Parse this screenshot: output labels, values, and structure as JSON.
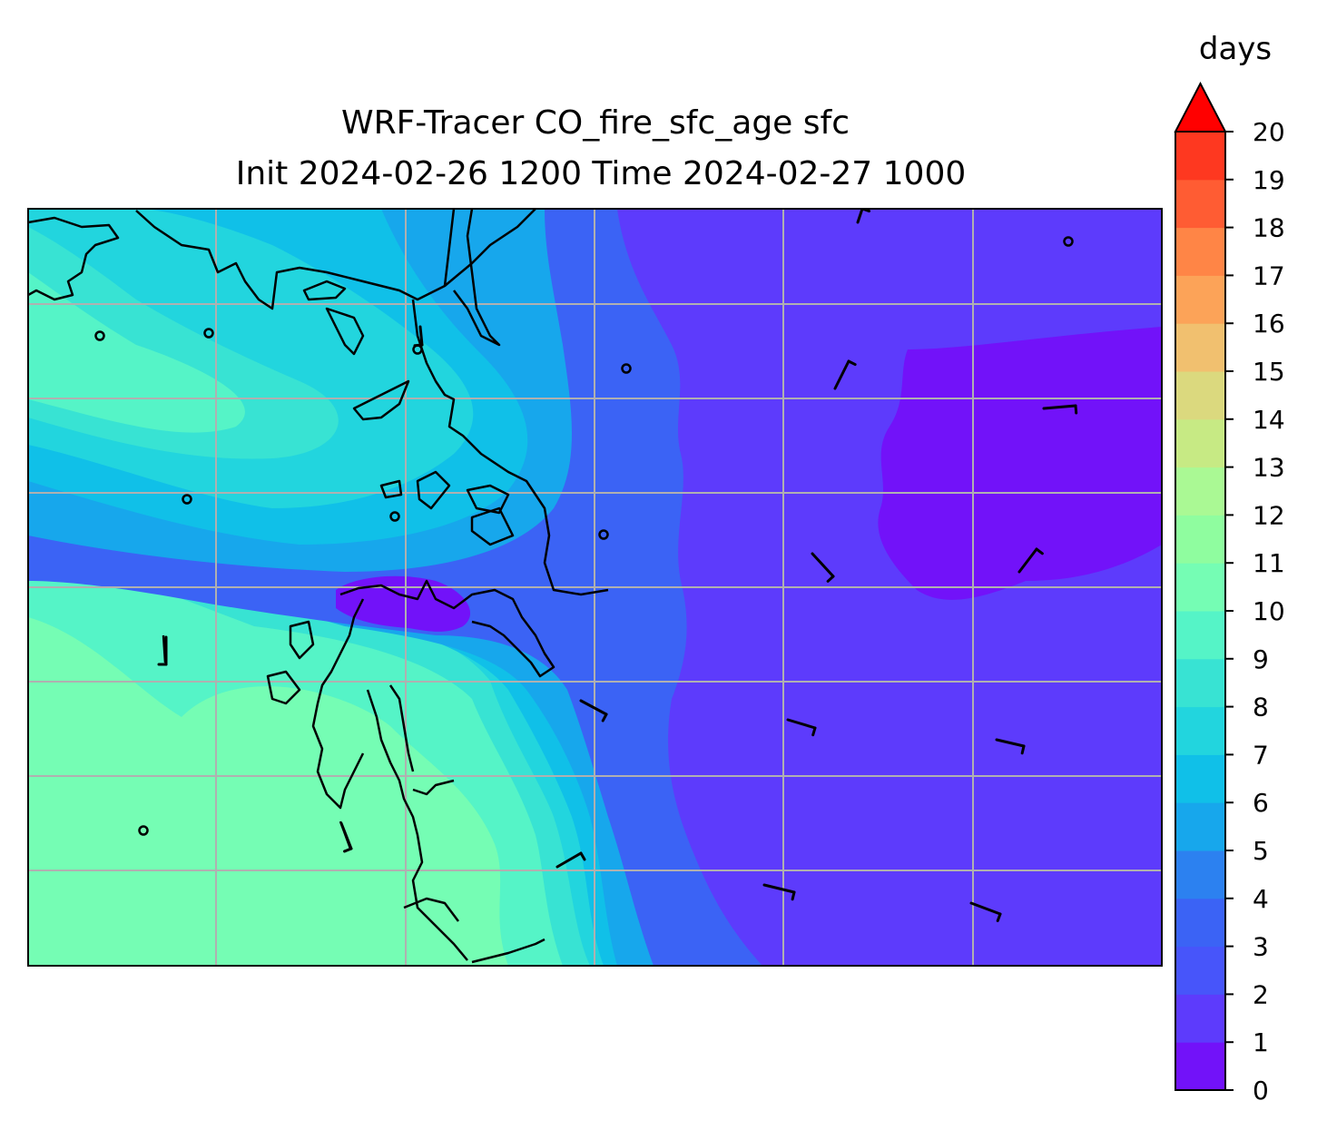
{
  "title": {
    "line1": "WRF-Tracer CO_fire_sfc_age sfc",
    "line2": "Init 2024-02-26 1200 Time 2024-02-27 1000"
  },
  "colorbar": {
    "unit": "days",
    "ticks": [
      "0",
      "1",
      "2",
      "3",
      "4",
      "5",
      "6",
      "7",
      "8",
      "9",
      "10",
      "11",
      "12",
      "13",
      "14",
      "15",
      "16",
      "17",
      "18",
      "19",
      "20"
    ],
    "colors": [
      "#7212f9",
      "#5d3bfc",
      "#4755fa",
      "#3b63f5",
      "#2c81f0",
      "#17a7ec",
      "#10c0e8",
      "#22d5de",
      "#38e3d3",
      "#55f4c7",
      "#75fdb4",
      "#8ffd9f",
      "#aaf994",
      "#c7ea84",
      "#dbd97e",
      "#f1c06f",
      "#fca358",
      "#ff8546",
      "#ff5c33",
      "#fe3820",
      "#ff1c0e"
    ],
    "extend_color": "#ff0000"
  },
  "map": {
    "colors": {
      "far_east": "#7212f9",
      "east": "#5d3bfc",
      "band2": "#3b63f5",
      "band4": "#17a7ec",
      "band5": "#10c0e8",
      "band6": "#22d5de",
      "band7": "#38e3d3",
      "band8": "#55f4c7",
      "band9": "#75fdb4",
      "hotspot": "#7212f9",
      "gridline": "#b0b0b0",
      "coast": "#000000"
    },
    "wind_barb_count": 14,
    "station_marker_count": 9
  }
}
